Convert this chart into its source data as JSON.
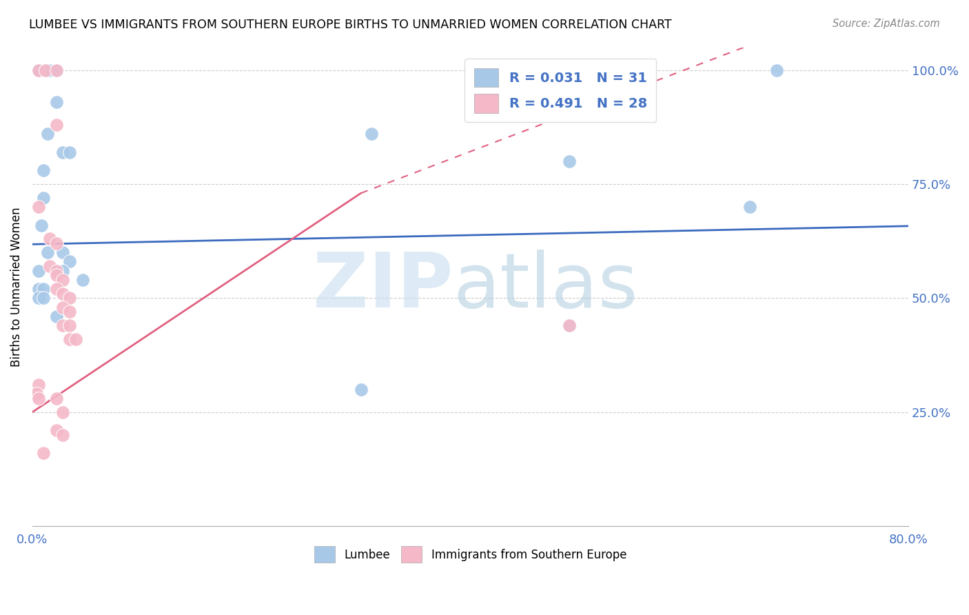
{
  "title": "LUMBEE VS IMMIGRANTS FROM SOUTHERN EUROPE BIRTHS TO UNMARRIED WOMEN CORRELATION CHART",
  "source": "Source: ZipAtlas.com",
  "ylabel": "Births to Unmarried Women",
  "xlim": [
    0.0,
    0.8
  ],
  "ylim": [
    0.0,
    1.05
  ],
  "lumbee_color": "#a8c8e8",
  "pink_color": "#f4b8c8",
  "lumbee_line_color": "#3a6abf",
  "pink_line_color": "#e06080",
  "lumbee_scatter": [
    [
      0.006,
      1.0
    ],
    [
      0.012,
      1.0
    ],
    [
      0.016,
      1.0
    ],
    [
      0.022,
      1.0
    ],
    [
      0.022,
      0.93
    ],
    [
      0.014,
      0.86
    ],
    [
      0.028,
      0.82
    ],
    [
      0.034,
      0.82
    ],
    [
      0.01,
      0.78
    ],
    [
      0.01,
      0.72
    ],
    [
      0.008,
      0.66
    ],
    [
      0.014,
      0.6
    ],
    [
      0.028,
      0.6
    ],
    [
      0.034,
      0.58
    ],
    [
      0.006,
      0.56
    ],
    [
      0.006,
      0.52
    ],
    [
      0.01,
      0.52
    ],
    [
      0.006,
      0.5
    ],
    [
      0.01,
      0.5
    ],
    [
      0.028,
      0.56
    ],
    [
      0.046,
      0.54
    ],
    [
      0.022,
      0.46
    ],
    [
      0.31,
      0.86
    ],
    [
      0.49,
      0.44
    ],
    [
      0.49,
      0.8
    ],
    [
      0.655,
      0.7
    ],
    [
      0.3,
      0.3
    ],
    [
      0.68,
      1.0
    ]
  ],
  "pink_scatter": [
    [
      0.006,
      1.0
    ],
    [
      0.012,
      1.0
    ],
    [
      0.022,
      1.0
    ],
    [
      0.022,
      0.88
    ],
    [
      0.006,
      0.7
    ],
    [
      0.016,
      0.63
    ],
    [
      0.022,
      0.62
    ],
    [
      0.016,
      0.57
    ],
    [
      0.022,
      0.56
    ],
    [
      0.022,
      0.55
    ],
    [
      0.028,
      0.54
    ],
    [
      0.022,
      0.52
    ],
    [
      0.028,
      0.51
    ],
    [
      0.034,
      0.5
    ],
    [
      0.028,
      0.48
    ],
    [
      0.034,
      0.47
    ],
    [
      0.028,
      0.44
    ],
    [
      0.034,
      0.44
    ],
    [
      0.034,
      0.41
    ],
    [
      0.04,
      0.41
    ],
    [
      0.006,
      0.31
    ],
    [
      0.022,
      0.28
    ],
    [
      0.028,
      0.25
    ],
    [
      0.022,
      0.21
    ],
    [
      0.028,
      0.2
    ],
    [
      0.01,
      0.16
    ],
    [
      0.004,
      0.29
    ],
    [
      0.006,
      0.28
    ],
    [
      0.49,
      0.44
    ]
  ],
  "lumbee_trendline": [
    [
      0.0,
      0.618
    ],
    [
      0.8,
      0.658
    ]
  ],
  "pink_trendline_solid": [
    [
      0.0,
      0.25
    ],
    [
      0.3,
      0.73
    ]
  ],
  "pink_trendline_dash": [
    [
      0.3,
      0.73
    ],
    [
      0.65,
      1.05
    ]
  ]
}
